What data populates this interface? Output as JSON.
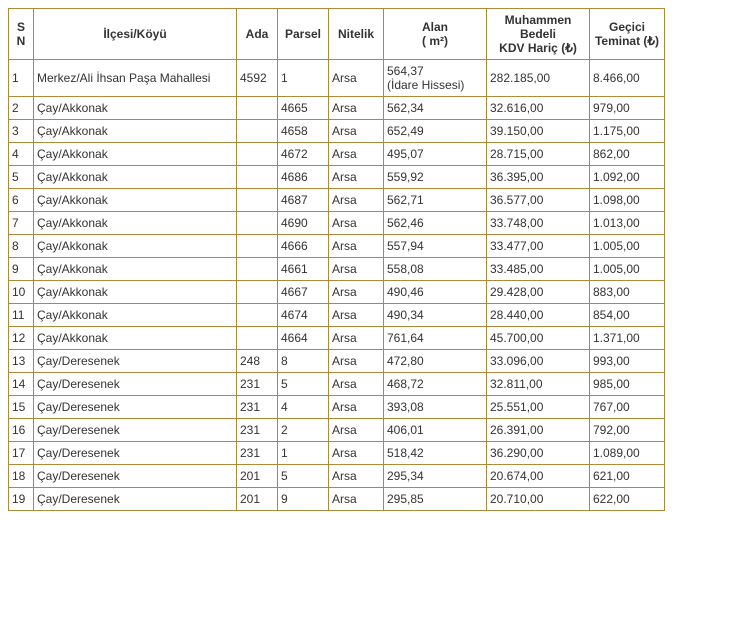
{
  "columns": [
    {
      "label": "S N",
      "class": "col-sn"
    },
    {
      "label": "İlçesi/Köyü",
      "class": "col-ilce"
    },
    {
      "label": "Ada",
      "class": "col-ada"
    },
    {
      "label": "Parsel",
      "class": "col-parsel"
    },
    {
      "label": "Nitelik",
      "class": "col-nitelik"
    },
    {
      "label": "Alan\n( m²)",
      "class": "col-alan"
    },
    {
      "label": "Muhammen Bedeli\nKDV Hariç (₺)",
      "class": "col-bedel"
    },
    {
      "label": "Geçici Teminat (₺)",
      "class": "col-teminat"
    }
  ],
  "rows": [
    [
      "1",
      "Merkez/Ali İhsan Paşa Mahallesi",
      "4592",
      "1",
      "Arsa",
      "564,37\n(İdare Hissesi)",
      "282.185,00",
      "8.466,00"
    ],
    [
      "2",
      "Çay/Akkonak",
      "",
      "4665",
      "Arsa",
      "562,34",
      "32.616,00",
      "979,00"
    ],
    [
      "3",
      "Çay/Akkonak",
      "",
      "4658",
      "Arsa",
      "652,49",
      "39.150,00",
      "1.175,00"
    ],
    [
      "4",
      "Çay/Akkonak",
      "",
      "4672",
      "Arsa",
      "495,07",
      "28.715,00",
      "862,00"
    ],
    [
      "5",
      "Çay/Akkonak",
      "",
      "4686",
      "Arsa",
      "559,92",
      "36.395,00",
      "1.092,00"
    ],
    [
      "6",
      "Çay/Akkonak",
      "",
      "4687",
      "Arsa",
      "562,71",
      "36.577,00",
      "1.098,00"
    ],
    [
      "7",
      "Çay/Akkonak",
      "",
      "4690",
      "Arsa",
      "562,46",
      "33.748,00",
      "1.013,00"
    ],
    [
      "8",
      "Çay/Akkonak",
      "",
      "4666",
      "Arsa",
      "557,94",
      "33.477,00",
      "1.005,00"
    ],
    [
      "9",
      "Çay/Akkonak",
      "",
      "4661",
      "Arsa",
      "558,08",
      "33.485,00",
      "1.005,00"
    ],
    [
      "10",
      "Çay/Akkonak",
      "",
      "4667",
      "Arsa",
      "490,46",
      "29.428,00",
      "883,00"
    ],
    [
      "11",
      "Çay/Akkonak",
      "",
      "4674",
      "Arsa",
      "490,34",
      "28.440,00",
      "854,00"
    ],
    [
      "12",
      "Çay/Akkonak",
      "",
      "4664",
      "Arsa",
      "761,64",
      "45.700,00",
      "1.371,00"
    ],
    [
      "13",
      "Çay/Deresenek",
      "248",
      "8",
      "Arsa",
      "472,80",
      "33.096,00",
      "993,00"
    ],
    [
      "14",
      "Çay/Deresenek",
      "231",
      "5",
      "Arsa",
      "468,72",
      "32.811,00",
      "985,00"
    ],
    [
      "15",
      "Çay/Deresenek",
      "231",
      "4",
      "Arsa",
      "393,08",
      "25.551,00",
      "767,00"
    ],
    [
      "16",
      "Çay/Deresenek",
      "231",
      "2",
      "Arsa",
      "406,01",
      "26.391,00",
      "792,00"
    ],
    [
      "17",
      "Çay/Deresenek",
      "231",
      "1",
      "Arsa",
      "518,42",
      "36.290,00",
      "1.089,00"
    ],
    [
      "18",
      "Çay/Deresenek",
      "201",
      "5",
      "Arsa",
      "295,34",
      "20.674,00",
      "621,00"
    ],
    [
      "19",
      "Çay/Deresenek",
      "201",
      "9",
      "Arsa",
      "295,85",
      "20.710,00",
      "622,00"
    ]
  ],
  "style": {
    "border_color": "#b08a3a",
    "text_color": "#333333",
    "background_color": "#ffffff",
    "font_size": 12
  }
}
